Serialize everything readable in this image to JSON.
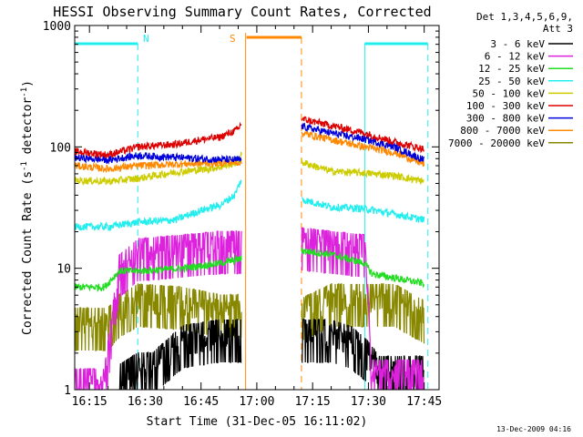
{
  "colors": {
    "bg": "#ffffff",
    "fg": "#000000",
    "band_3_6": "#000000",
    "band_6_12": "#dd22dd",
    "band_12_25": "#22dd22",
    "band_25_50": "#22eeee",
    "band_50_100": "#cccc00",
    "band_100_300": "#dd0000",
    "band_300_800": "#0000dd",
    "band_800_7000": "#ff8800",
    "band_7000_20000": "#888800",
    "night": "#22eeee",
    "saa": "#ff8800"
  },
  "chart_data": {
    "type": "line",
    "title": "HESSI Observing Summary Count Rates, Corrected",
    "xlabel": "Start Time (31-Dec-05 16:11:02)",
    "ylabel_main": "Corrected Count Rate (s",
    "ylabel_sup1": "-1",
    "ylabel_mid": " detector",
    "ylabel_sup2": "-1",
    "ylabel_end": ")",
    "y_scale": "log",
    "ylim": [
      1,
      1000
    ],
    "xlim": [
      "16:11:02",
      "17:49:00"
    ],
    "x_ticks": [
      "16:15",
      "16:30",
      "16:45",
      "17:00",
      "17:15",
      "17:30",
      "17:45"
    ],
    "y_ticks": [
      "1",
      "10",
      "100",
      "1000"
    ],
    "legend_header1": "Det 1,3,4,5,6,9,",
    "legend_header2": "Att 3",
    "legend": [
      {
        "label": "3 - 6 keV",
        "color": "#000000"
      },
      {
        "label": "6 - 12 keV",
        "color": "#dd22dd"
      },
      {
        "label": "12 - 25 keV",
        "color": "#22dd22"
      },
      {
        "label": "25 - 50 keV",
        "color": "#22eeee"
      },
      {
        "label": "50 - 100 keV",
        "color": "#cccc00"
      },
      {
        "label": "100 - 300 keV",
        "color": "#dd0000"
      },
      {
        "label": "300 - 800 keV",
        "color": "#0000dd"
      },
      {
        "label": "800 - 7000 keV",
        "color": "#ff8800"
      },
      {
        "label": "7000 - 20000 keV",
        "color": "#888800"
      }
    ],
    "night_label": "N",
    "saa_label": "S",
    "gap": {
      "start": "16:57",
      "end": "17:11"
    },
    "night_intervals": [
      [
        "16:11",
        "16:28"
      ],
      [
        "17:29",
        "17:46"
      ]
    ],
    "saa_interval": [
      "16:57",
      "17:12"
    ],
    "series": [
      {
        "name": "3 - 6 keV",
        "color": "#000000",
        "style": "spiky",
        "points": [
          [
            "16:23",
            1.2
          ],
          [
            "16:28",
            1.5
          ],
          [
            "16:32",
            1.5
          ],
          [
            "16:40",
            2.5
          ],
          [
            "16:50",
            2.8
          ],
          [
            "16:56",
            2.8
          ],
          [
            "17:12",
            2.8
          ],
          [
            "17:20",
            2.8
          ],
          [
            "17:25",
            2.5
          ],
          [
            "17:29",
            2.0
          ],
          [
            "17:33",
            1.4
          ],
          [
            "17:45",
            1.4
          ]
        ]
      },
      {
        "name": "6 - 12 keV",
        "color": "#dd22dd",
        "style": "spiky",
        "points": [
          [
            "16:11",
            1.1
          ],
          [
            "16:19",
            1.1
          ],
          [
            "16:23",
            9.5
          ],
          [
            "16:28",
            13
          ],
          [
            "16:40",
            14
          ],
          [
            "16:50",
            15
          ],
          [
            "16:56",
            15
          ],
          [
            "17:12",
            16
          ],
          [
            "17:20",
            15
          ],
          [
            "17:29",
            14
          ],
          [
            "17:31",
            1.3
          ],
          [
            "17:45",
            1.3
          ]
        ]
      },
      {
        "name": "12 - 25 keV",
        "color": "#22dd22",
        "style": "band",
        "points": [
          [
            "16:11",
            7
          ],
          [
            "16:19",
            7
          ],
          [
            "16:23",
            9.5
          ],
          [
            "16:28",
            9.5
          ],
          [
            "16:40",
            10
          ],
          [
            "16:50",
            11
          ],
          [
            "16:56",
            12
          ],
          [
            "17:12",
            14
          ],
          [
            "17:20",
            13
          ],
          [
            "17:29",
            11
          ],
          [
            "17:31",
            9
          ],
          [
            "17:45",
            7.5
          ]
        ]
      },
      {
        "name": "25 - 50 keV",
        "color": "#22eeee",
        "style": "band",
        "points": [
          [
            "16:11",
            22
          ],
          [
            "16:20",
            22
          ],
          [
            "16:28",
            24
          ],
          [
            "16:38",
            25
          ],
          [
            "16:45",
            30
          ],
          [
            "16:50",
            33
          ],
          [
            "16:54",
            40
          ],
          [
            "16:56",
            55
          ],
          [
            "17:12",
            37
          ],
          [
            "17:20",
            32
          ],
          [
            "17:29",
            31
          ],
          [
            "17:37",
            28
          ],
          [
            "17:45",
            25
          ]
        ]
      },
      {
        "name": "50 - 100 keV",
        "color": "#cccc00",
        "style": "band",
        "points": [
          [
            "16:11",
            53
          ],
          [
            "16:20",
            52
          ],
          [
            "16:28",
            55
          ],
          [
            "16:38",
            62
          ],
          [
            "16:45",
            65
          ],
          [
            "16:50",
            68
          ],
          [
            "16:55",
            75
          ],
          [
            "16:56",
            90
          ],
          [
            "17:12",
            75
          ],
          [
            "17:20",
            63
          ],
          [
            "17:29",
            61
          ],
          [
            "17:37",
            58
          ],
          [
            "17:45",
            52
          ]
        ]
      },
      {
        "name": "100 - 300 keV",
        "color": "#dd0000",
        "style": "band",
        "points": [
          [
            "16:11",
            92
          ],
          [
            "16:20",
            86
          ],
          [
            "16:28",
            100
          ],
          [
            "16:38",
            105
          ],
          [
            "16:45",
            115
          ],
          [
            "16:50",
            120
          ],
          [
            "16:55",
            140
          ],
          [
            "16:56",
            160
          ],
          [
            "17:12",
            170
          ],
          [
            "17:20",
            150
          ],
          [
            "17:29",
            130
          ],
          [
            "17:37",
            110
          ],
          [
            "17:45",
            96
          ]
        ]
      },
      {
        "name": "300 - 800 keV",
        "color": "#0000dd",
        "style": "band",
        "points": [
          [
            "16:11",
            82
          ],
          [
            "16:20",
            78
          ],
          [
            "16:28",
            85
          ],
          [
            "16:38",
            82
          ],
          [
            "16:45",
            80
          ],
          [
            "16:50",
            79
          ],
          [
            "16:56",
            78
          ],
          [
            "17:12",
            148
          ],
          [
            "17:20",
            130
          ],
          [
            "17:29",
            116
          ],
          [
            "17:37",
            100
          ],
          [
            "17:45",
            78
          ]
        ]
      },
      {
        "name": "800 - 7000 keV",
        "color": "#ff8800",
        "style": "band",
        "points": [
          [
            "16:11",
            70
          ],
          [
            "16:20",
            66
          ],
          [
            "16:28",
            70
          ],
          [
            "16:38",
            72
          ],
          [
            "16:45",
            73
          ],
          [
            "16:50",
            74
          ],
          [
            "16:56",
            75
          ],
          [
            "17:12",
            130
          ],
          [
            "17:20",
            115
          ],
          [
            "17:29",
            100
          ],
          [
            "17:37",
            90
          ],
          [
            "17:45",
            72
          ]
        ]
      },
      {
        "name": "7000 - 20000 keV",
        "color": "#888800",
        "style": "spiky",
        "points": [
          [
            "16:11",
            3.5
          ],
          [
            "16:20",
            3.5
          ],
          [
            "16:23",
            4.5
          ],
          [
            "16:28",
            5.5
          ],
          [
            "16:40",
            5.2
          ],
          [
            "16:50",
            4.5
          ],
          [
            "16:56",
            4.5
          ],
          [
            "17:12",
            4.2
          ],
          [
            "17:20",
            5.5
          ],
          [
            "17:29",
            5.5
          ],
          [
            "17:37",
            5.5
          ],
          [
            "17:45",
            4
          ]
        ]
      }
    ]
  },
  "footer_timestamp": "13-Dec-2009 04:16"
}
